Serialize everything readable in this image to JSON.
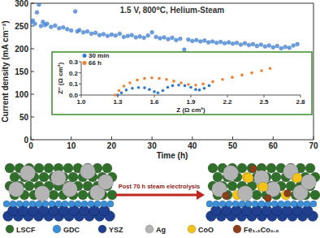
{
  "chart_data": [
    {
      "type": "scatter",
      "title": "1.5 V, 800⁰C, Helium-Steam",
      "x_label": "Time (h)",
      "y_label": "Current density (mA cm⁻²)",
      "x": [
        0,
        0.5,
        1,
        1.5,
        2,
        2.5,
        3,
        3.5,
        4,
        5,
        6,
        7,
        8,
        9,
        10,
        11,
        11.5,
        12,
        13,
        14,
        15,
        16,
        17,
        18,
        19,
        20,
        21,
        22,
        23,
        24,
        25,
        26,
        27,
        28,
        29,
        30,
        31,
        32,
        33,
        34,
        35,
        36,
        37,
        38,
        39,
        40,
        41,
        42,
        43,
        44,
        45,
        46,
        47,
        48,
        49,
        50,
        51,
        52,
        53,
        54,
        55,
        56,
        57,
        58,
        59,
        60,
        61,
        62,
        63,
        64,
        65,
        66
      ],
      "values": [
        258,
        262,
        255,
        280,
        297,
        250,
        259,
        252,
        255,
        248,
        251,
        245,
        247,
        243,
        240,
        282,
        238,
        241,
        236,
        238,
        233,
        235,
        230,
        232,
        228,
        231,
        229,
        233,
        226,
        228,
        230,
        225,
        227,
        224,
        229,
        236,
        226,
        223,
        225,
        221,
        224,
        219,
        222,
        198,
        220,
        217,
        219,
        216,
        218,
        214,
        216,
        213,
        215,
        212,
        214,
        211,
        213,
        209,
        212,
        208,
        210,
        206,
        209,
        205,
        207,
        203,
        206,
        201,
        204,
        202,
        207,
        210
      ],
      "color": "#3f7fd1",
      "marker": "circle",
      "grid": false,
      "xlim": [
        0,
        70
      ],
      "xticks": [
        0,
        10,
        20,
        30,
        40,
        50,
        60,
        70
      ],
      "ylim": [
        0,
        300
      ],
      "yticks": [
        0,
        50,
        100,
        150,
        200,
        250,
        300
      ]
    },
    {
      "type": "scatter",
      "x_label": "Z (Ω cm²)",
      "y_label": "Z'' (Ω cm²)",
      "legend": "upper left",
      "marker": "circle",
      "series": [
        {
          "name": "30 min",
          "color": "#2f78d0",
          "x": [
            1.3,
            1.33,
            1.37,
            1.42,
            1.47,
            1.52,
            1.56,
            1.6,
            1.63,
            1.67,
            1.71,
            1.75,
            1.8,
            1.85,
            1.9,
            1.94,
            1.97,
            2.01,
            2.05
          ],
          "values": [
            0.0,
            0.02,
            0.045,
            0.06,
            0.068,
            0.065,
            0.05,
            0.03,
            0.02,
            0.04,
            0.07,
            0.085,
            0.09,
            0.085,
            0.07,
            0.05,
            0.045,
            0.06,
            0.085
          ]
        },
        {
          "name": "66 h",
          "color": "#f07f2e",
          "x": [
            1.28,
            1.31,
            1.35,
            1.4,
            1.46,
            1.52,
            1.58,
            1.64,
            1.7,
            1.76,
            1.82,
            1.88,
            1.94,
            2.0,
            2.08,
            2.16,
            2.24,
            2.32,
            2.4,
            2.48,
            2.55
          ],
          "values": [
            0.0,
            0.04,
            0.08,
            0.11,
            0.135,
            0.15,
            0.155,
            0.15,
            0.14,
            0.125,
            0.11,
            0.095,
            0.09,
            0.1,
            0.12,
            0.14,
            0.16,
            0.18,
            0.2,
            0.22,
            0.24
          ]
        }
      ],
      "xlim": [
        1.0,
        2.8
      ],
      "xticks": [
        {
          "value": 1,
          "label": "1.0"
        },
        1.3,
        1.6,
        1.9,
        2.2,
        2.5,
        2.8
      ],
      "ylim": [
        0,
        0.3
      ],
      "yticks": [
        {
          "value": 0,
          "label": "0.0"
        },
        0.1,
        0.2,
        0.3
      ]
    }
  ],
  "diagram": {
    "arrow_label": "Post 70 h steam electrolysis",
    "legend": [
      {
        "label": "LSCF",
        "color": "#2f6f2a"
      },
      {
        "label": "GDC",
        "color": "#3b8fd8"
      },
      {
        "label": "YSZ",
        "color": "#1f3f8f"
      },
      {
        "label": "Ag",
        "color": "#b4b4b4"
      },
      {
        "label": "CoO",
        "color": "#f2c318"
      },
      {
        "label": "Fe₁.₅Co₀.₅",
        "color": "#8b3e1a"
      }
    ]
  }
}
